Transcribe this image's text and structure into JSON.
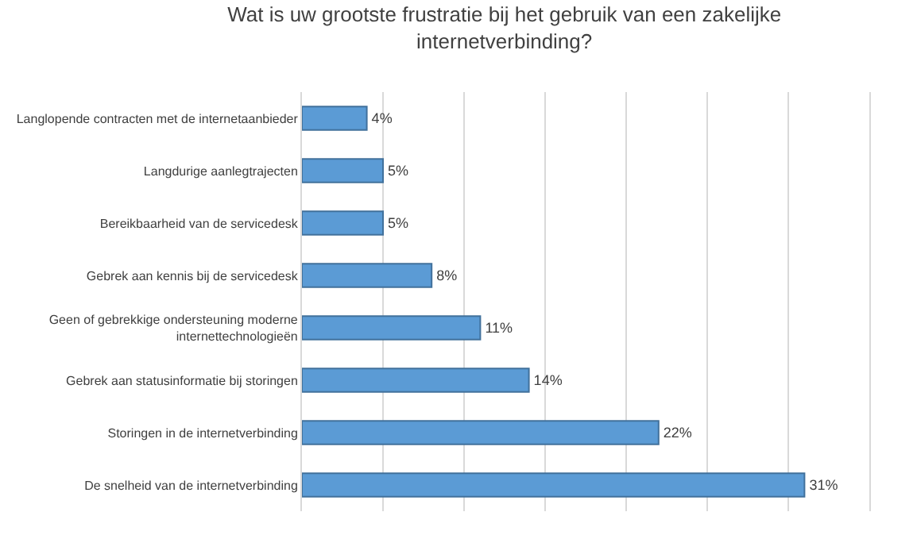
{
  "chart_data": {
    "type": "bar",
    "orientation": "horizontal",
    "title": "Wat is uw grootste frustratie bij het gebruik van een zakelijke internetverbinding?",
    "categories": [
      "Langlopende contracten met de internetaanbieder",
      "Langdurige aanlegtrajecten",
      "Bereikbaarheid van de servicedesk",
      "Gebrek aan kennis bij de servicedesk",
      "Geen of gebrekkige ondersteuning moderne internettechnologieën",
      "Gebrek aan statusinformatie bij storingen",
      "Storingen in de internetverbinding",
      "De snelheid van de internetverbinding"
    ],
    "values": [
      4,
      5,
      5,
      8,
      11,
      14,
      22,
      31
    ],
    "value_labels": [
      "4%",
      "5%",
      "5%",
      "8%",
      "11%",
      "14%",
      "22%",
      "31%"
    ],
    "color": "#5b9bd5",
    "xlim": [
      0,
      35
    ],
    "xticks": [
      {
        "value": 0,
        "label": null
      },
      {
        "value": 5,
        "label": null
      },
      {
        "value": 10,
        "label": null
      },
      {
        "value": 15,
        "label": null
      },
      {
        "value": 20,
        "label": null
      },
      {
        "value": 25,
        "label": null
      },
      {
        "value": 30,
        "label": null
      },
      {
        "value": 35,
        "label": null
      }
    ],
    "grid": "x",
    "tick_labels": "y",
    "legend": false
  }
}
